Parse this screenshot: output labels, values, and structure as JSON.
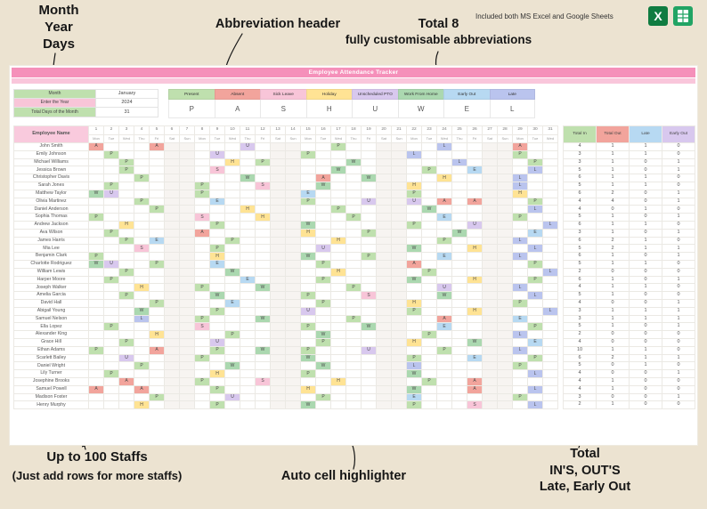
{
  "annotations": {
    "top_left_lines": [
      "Month",
      "Year",
      "Days"
    ],
    "abbrev_header": "Abbreviation header",
    "total8_line1": "Total 8",
    "total8_line2": "fully customisable abbreviations",
    "included": "Included both MS Excel and Google Sheets",
    "bottom_left_line1": "Up to 100 Staffs",
    "bottom_left_line2": "(Just add rows for more staffs)",
    "auto_cell": "Auto cell highlighter",
    "bottom_right_lines": [
      "Total",
      "IN'S, OUT'S",
      "Late, Early Out"
    ]
  },
  "icons": {
    "excel_letter": "X"
  },
  "sheet": {
    "title": "Employee Attendance Tracker",
    "colors": {
      "title_bar": "#f590ba",
      "title_strip": "#f9c6db",
      "name_header": "#f9cadd",
      "weekend_tint": "#f7f4f1"
    },
    "settings": [
      {
        "label": "Month",
        "value": "January",
        "color": "#bfe0ae"
      },
      {
        "label": "Enter the Year",
        "value": "2024",
        "color": "#f8c5d8"
      },
      {
        "label": "Total Days of the Month",
        "value": "31",
        "color": "#bfe0ae"
      }
    ],
    "abbreviations": [
      {
        "name": "Present",
        "letter": "P",
        "color": "#bfe0ae"
      },
      {
        "name": "Absent",
        "letter": "A",
        "color": "#f2a49c"
      },
      {
        "name": "Sick Leave",
        "letter": "S",
        "color": "#f8c5d8"
      },
      {
        "name": "Holiday",
        "letter": "H",
        "color": "#ffe394"
      },
      {
        "name": "Unscheduled PTO",
        "letter": "U",
        "color": "#d8c8ee"
      },
      {
        "name": "Work From Home",
        "letter": "W",
        "color": "#abd8b0"
      },
      {
        "name": "Early Out",
        "letter": "E",
        "color": "#b7d9f2"
      },
      {
        "name": "Late",
        "letter": "L",
        "color": "#bac4ee"
      }
    ],
    "employee_header": "Employee Name",
    "totals_headers": [
      {
        "label": "Total In",
        "color": "#bfe0ae"
      },
      {
        "label": "Total Out",
        "color": "#f2a49c"
      },
      {
        "label": "Late",
        "color": "#b7d9f2"
      },
      {
        "label": "Early Out",
        "color": "#d8c8ee"
      }
    ],
    "code_colors": {
      "P": "#bfe0ae",
      "A": "#f2a49c",
      "S": "#f8c5d8",
      "H": "#ffe394",
      "U": "#d8c8ee",
      "W": "#abd8b0",
      "E": "#b7d9f2",
      "L": "#bac4ee"
    },
    "day_numbers": [
      1,
      2,
      3,
      4,
      5,
      6,
      7,
      8,
      9,
      10,
      11,
      12,
      13,
      14,
      15,
      16,
      17,
      18,
      19,
      20,
      21,
      22,
      23,
      24,
      25,
      26,
      27,
      28,
      29,
      30,
      31
    ],
    "day_names": [
      "Mon",
      "Tue",
      "Wed",
      "Thu",
      "Fri",
      "Sat",
      "Sun",
      "Mon",
      "Tue",
      "Wed",
      "Thu",
      "Fri",
      "Sat",
      "Sun",
      "Mon",
      "Tue",
      "Wed",
      "Thu",
      "Fri",
      "Sat",
      "Sun",
      "Mon",
      "Tue",
      "Wed",
      "Thu",
      "Fri",
      "Sat",
      "Sun",
      "Mon",
      "Tue",
      "Wed"
    ],
    "employees": [
      {
        "name": "John Smith",
        "days": "A...A.....U.....P......L....A..",
        "totals": [
          4,
          1,
          1,
          0
        ]
      },
      {
        "name": "Emily Johnson",
        "days": ".P......U.....P......L......P..",
        "totals": [
          3,
          1,
          1,
          0
        ]
      },
      {
        "name": "Michael Williams",
        "days": "..P......H.P.....W......L....P.",
        "totals": [
          3,
          1,
          0,
          1
        ]
      },
      {
        "name": "Jessica Brown",
        "days": "..P.....S.......W.....P..E...L.",
        "totals": [
          5,
          1,
          0,
          1
        ]
      },
      {
        "name": "Christopher Davis",
        "days": "...P......W....A..W....H....L..",
        "totals": [
          6,
          1,
          1,
          0
        ]
      },
      {
        "name": "Sarah Jones",
        "days": ".P.....P...S...W.....H......L..",
        "totals": [
          5,
          1,
          1,
          0
        ]
      },
      {
        "name": "Matthew Taylor",
        "days": "WU.....P......E......P......H..",
        "totals": [
          6,
          2,
          0,
          1
        ]
      },
      {
        "name": "Olivia Martinez",
        "days": "...P....E.....P...U..U.A.A...P.",
        "totals": [
          4,
          4,
          0,
          1
        ]
      },
      {
        "name": "Daniel Anderson",
        "days": "....P.....H.....P.....W......L.",
        "totals": [
          4,
          0,
          1,
          0
        ]
      },
      {
        "name": "Sophia Thomas",
        "days": "P......S...H.....P.....E....P..",
        "totals": [
          5,
          1,
          0,
          1
        ]
      },
      {
        "name": "Andrew Jackson",
        "days": "..H.....P.....W......P...U....L",
        "totals": [
          6,
          1,
          1,
          0
        ]
      },
      {
        "name": "Ava Wilson",
        "days": ".P.....A......H...P.....W....E.",
        "totals": [
          3,
          1,
          0,
          1
        ]
      },
      {
        "name": "James Harris",
        "days": "..P.E....P......H......P....L..",
        "totals": [
          6,
          2,
          1,
          0
        ]
      },
      {
        "name": "Mia Lee",
        "days": "...S....P......U.....W...H...L.",
        "totals": [
          5,
          2,
          1,
          1
        ]
      },
      {
        "name": "Benjamin Clark",
        "days": "P.......H.....W...P....E....L..",
        "totals": [
          6,
          1,
          0,
          1
        ]
      },
      {
        "name": "Charlotte Rodriguez",
        "days": "WU..P...E......P.....A.......P.",
        "totals": [
          5,
          1,
          1,
          0
        ]
      },
      {
        "name": "William Lewis",
        "days": "..P......W......H.....P.......L",
        "totals": [
          2,
          0,
          0,
          0
        ]
      },
      {
        "name": "Harper Moore",
        "days": ".P........E....P.....W...H...P.",
        "totals": [
          6,
          1,
          0,
          1
        ]
      },
      {
        "name": "Joseph Walker",
        "days": "...H...P...W.....P.....U....L..",
        "totals": [
          4,
          1,
          1,
          0
        ]
      },
      {
        "name": "Amelia Garcia",
        "days": "..P.....W.....P...S....W.....L.",
        "totals": [
          5,
          1,
          0,
          0
        ]
      },
      {
        "name": "David Hall",
        "days": "....P....E.....P.....H......P..",
        "totals": [
          4,
          0,
          0,
          1
        ]
      },
      {
        "name": "Abigail Young",
        "days": "...W....P.....U......P...H....L",
        "totals": [
          3,
          1,
          1,
          1
        ]
      },
      {
        "name": "Samuel Nelson",
        "days": "...L...P...W.....P.....A....E..",
        "totals": [
          3,
          1,
          1,
          1
        ]
      },
      {
        "name": "Ella Lopez",
        "days": ".P.....S......P...W....E.....P.",
        "totals": [
          5,
          1,
          0,
          1
        ]
      },
      {
        "name": "Alexander King",
        "days": "....H....P.....W......P.....L..",
        "totals": [
          2,
          0,
          0,
          0
        ]
      },
      {
        "name": "Grace Hill",
        "days": "..P.....U......P.....H...W...E.",
        "totals": [
          4,
          0,
          0,
          0
        ]
      },
      {
        "name": "Ethan Adams",
        "days": "P...A...P..W..P...U....P....L..",
        "totals": [
          10,
          1,
          1,
          0
        ]
      },
      {
        "name": "Scarlett Bailey",
        "days": "..U....P......W......P...E...P.",
        "totals": [
          6,
          2,
          1,
          1
        ]
      },
      {
        "name": "Daniel Wright",
        "days": "...P.....W.....W.....L......P..",
        "totals": [
          5,
          0,
          1,
          0
        ]
      },
      {
        "name": "Lily Turner",
        "days": ".P......H.....P......W.......L.",
        "totals": [
          4,
          0,
          0,
          1
        ]
      },
      {
        "name": "Josephine Brooks",
        "days": "..A....P...S....H.....P..A.....",
        "totals": [
          4,
          1,
          0,
          0
        ]
      },
      {
        "name": "Samuel Powell",
        "days": "A..A....P.....H......W...A...L.",
        "totals": [
          4,
          1,
          0,
          0
        ]
      },
      {
        "name": "Madison Foster",
        "days": "....P....U.....P.....E......P..",
        "totals": [
          3,
          0,
          0,
          1
        ]
      },
      {
        "name": "Henry Murphy",
        "days": "...H....P.....W......P...S...L.",
        "totals": [
          2,
          1,
          0,
          0
        ]
      }
    ]
  }
}
